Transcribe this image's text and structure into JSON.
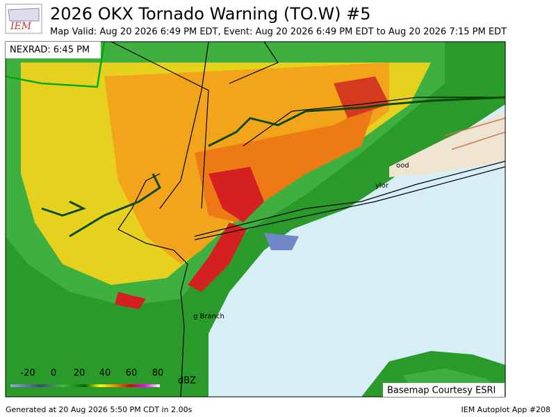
{
  "header": {
    "title": "2026 OKX  Tornado Warning (TO.W) #5",
    "subtitle": "Map Valid: Aug 20 2026 6:49 PM EDT, Event: Aug 20 2026 6:49 PM EDT to Aug 20 2026 7:15 PM EDT",
    "logo": "IEM"
  },
  "map": {
    "radar_time": "NEXRAD: 6:45 PM",
    "places": [
      "g Branch",
      "ood",
      "ylor"
    ],
    "basemap_credit": "Basemap Courtesy ESRI"
  },
  "legend": {
    "ticks": [
      -20,
      0,
      20,
      40,
      60,
      80
    ],
    "unit": "dBZ"
  },
  "footer": {
    "generated": "Generated at 20 Aug 2026 5:50 PM CDT in 2.00s",
    "app": "IEM Autoplot App #208"
  }
}
